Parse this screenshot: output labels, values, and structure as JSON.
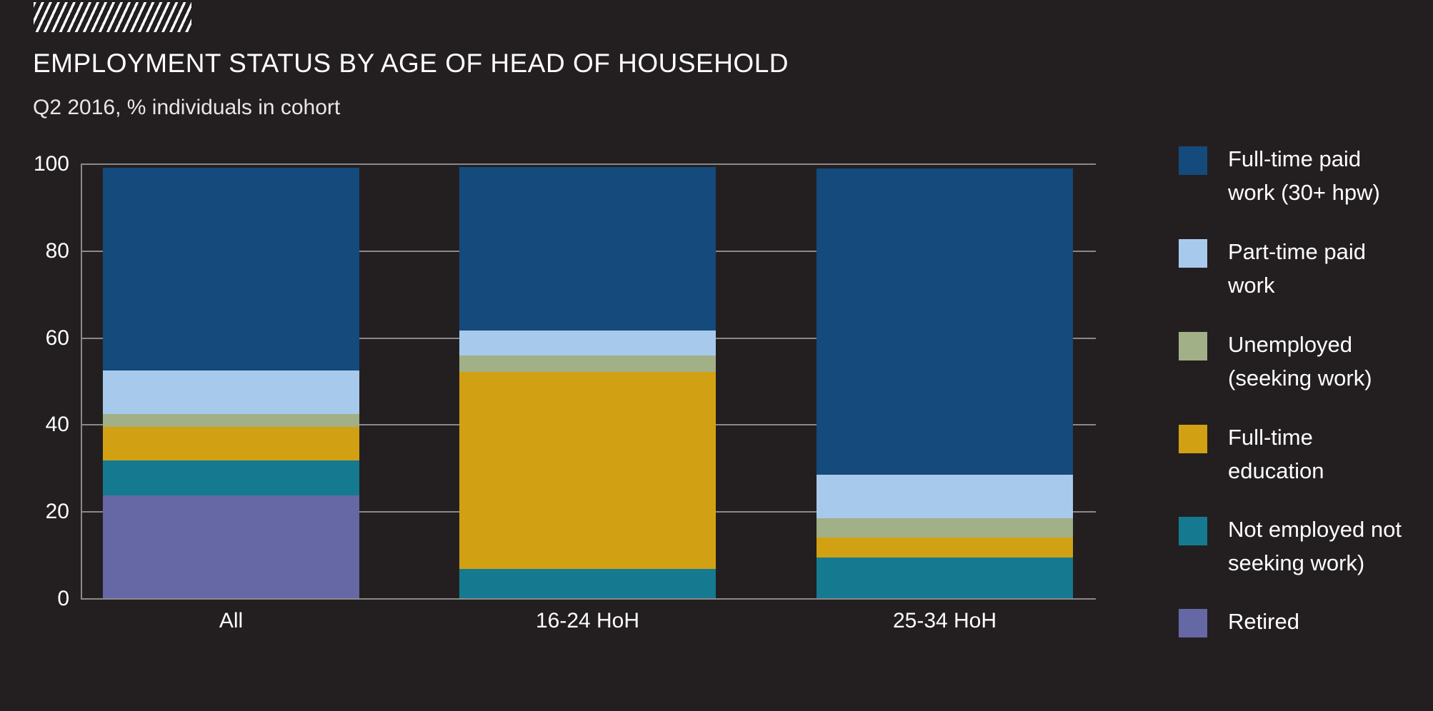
{
  "header": {
    "title": "EMPLOYMENT STATUS BY AGE OF HEAD OF HOUSEHOLD",
    "subtitle": "Q2 2016, % individuals in cohort"
  },
  "colors": {
    "background": "#231F20",
    "gridline": "#8A8888",
    "title_text": "#FFFFFF",
    "subtitle_text": "#E8E6E6",
    "axis_text": "#FFFFFF",
    "logo_stripes": "#FFFFFF"
  },
  "chart_data": {
    "type": "bar",
    "stacked": true,
    "title": "EMPLOYMENT STATUS BY AGE OF HEAD OF HOUSEHOLD",
    "subtitle": "Q2 2016, % individuals in cohort",
    "categories": [
      "All",
      "16-24 HoH",
      "25-34 HoH"
    ],
    "series": [
      {
        "name": "Full-time paid work (30+ hpw)",
        "color": "#144A7C",
        "values": [
          46.7,
          37.6,
          70.5
        ]
      },
      {
        "name": "Part-time paid work",
        "color": "#A7CAEC",
        "values": [
          10.0,
          5.7,
          10.0
        ]
      },
      {
        "name": "Unemployed (seeking work)",
        "color": "#A1B086",
        "values": [
          3.0,
          3.8,
          4.3
        ]
      },
      {
        "name": "Full-time education",
        "color": "#D2A013",
        "values": [
          7.7,
          45.3,
          4.6
        ]
      },
      {
        "name": "Not employed not seeking work)",
        "color": "#157A90",
        "values": [
          8.0,
          6.9,
          9.6
        ]
      },
      {
        "name": "Retired",
        "color": "#6568A4",
        "values": [
          23.8,
          0,
          0
        ]
      }
    ],
    "ylim": [
      0,
      100
    ],
    "yticks": [
      0,
      20,
      40,
      60,
      80,
      100
    ],
    "grid": true,
    "legend_position": "right"
  },
  "legend": {
    "items": [
      {
        "lines": [
          "Full-time paid",
          "work (30+ hpw)"
        ]
      },
      {
        "lines": [
          "Part-time paid",
          "work"
        ]
      },
      {
        "lines": [
          "Unemployed",
          "(seeking work)"
        ]
      },
      {
        "lines": [
          "Full-time",
          "education"
        ]
      },
      {
        "lines": [
          "Not employed not",
          "seeking work)"
        ]
      },
      {
        "lines": [
          "Retired"
        ]
      }
    ]
  }
}
